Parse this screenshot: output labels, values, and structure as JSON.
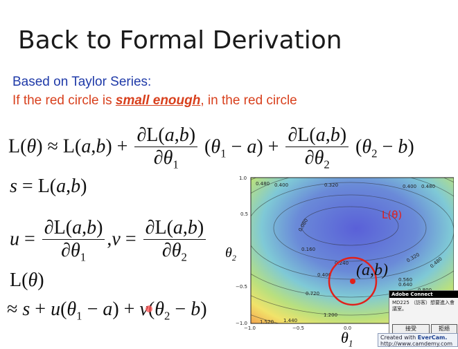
{
  "slide": {
    "title": "Back to Formal Derivation",
    "subtitle_line1": "Based on Taylor Series:",
    "subtitle_line2_pre": "If the red circle is ",
    "subtitle_line2_emph": "small enough",
    "subtitle_line2_post": ", in the red circle"
  },
  "equations": {
    "loss_symbol": "L",
    "theta": "θ",
    "approx": "≈",
    "point": "(a,b)",
    "s_def_lhs": "s",
    "u_lhs": "u",
    "v_lhs": "v",
    "partial_num": "∂L(a,b)",
    "partial_den_1": "∂θ",
    "sub1": "1",
    "sub2": "2"
  },
  "plot": {
    "contour_labels": [
      "0.480",
      "0.400",
      "0.320",
      "0.400",
      "0.480",
      "0.080",
      "0.160",
      "0.240",
      "0.320",
      "0.400",
      "0.480",
      "0.560",
      "0.640",
      "0.720",
      "0.800",
      "1.200",
      "1.440",
      "1.520"
    ],
    "x_ticks": [
      "−1.0",
      "−0.5",
      "0.0"
    ],
    "y_ticks": [
      "1.0",
      "0.5",
      "−0.5",
      "−1.0"
    ],
    "annotation_loss": "L(θ)",
    "annotation_point": "(a,b)",
    "x_axis_label": "θ",
    "y_axis_label": "θ",
    "x_axis_sub": "1",
    "y_axis_sub": "2",
    "colors": {
      "circle": "#e0201b",
      "annotation": "#e0201b"
    }
  },
  "popup": {
    "header": "Adobe Connect",
    "message": "MD225 （訪客）想要進入會議室。",
    "accept_label": "接受",
    "reject_label": "拒絕"
  },
  "watermark": {
    "line1_prefix": "Created with ",
    "line1_brand": "EverCam.",
    "line2": "http://www.camdemy.com"
  }
}
